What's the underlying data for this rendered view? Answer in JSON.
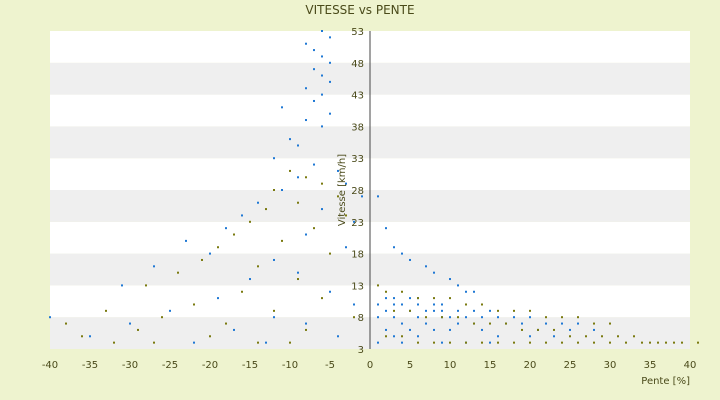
{
  "chart_data": {
    "type": "scatter",
    "title": "VITESSE vs PENTE",
    "xlabel": "Pente [%]",
    "ylabel": "Vitesse [km/h]",
    "xlim": [
      -40,
      40
    ],
    "ylim": [
      3,
      53
    ],
    "xticks": [
      "-40",
      "-35",
      "-30",
      "-25",
      "-20",
      "-15",
      "-10",
      "-5",
      "0",
      "5",
      "10",
      "15",
      "20",
      "25",
      "30",
      "35",
      "40"
    ],
    "yticks": [
      "3",
      "8",
      "13",
      "18",
      "23",
      "28",
      "33",
      "38",
      "43",
      "48",
      "53"
    ],
    "grid": "horizontal alternating bands",
    "legend": "none",
    "colors": {
      "series1": "#1f78d4",
      "series2": "#7a7a10",
      "bands_light": "#ffffff",
      "bands_dark": "#efefef",
      "background": "#eef3cf"
    },
    "series": [
      {
        "color": "#1f78d4",
        "values": [
          [
            -6,
            53
          ],
          [
            -5,
            52
          ],
          [
            -8,
            51
          ],
          [
            -7,
            50
          ],
          [
            -6,
            49
          ],
          [
            -5,
            48
          ],
          [
            -7,
            47
          ],
          [
            -6,
            46
          ],
          [
            -5,
            45
          ],
          [
            -8,
            44
          ],
          [
            -6,
            43
          ],
          [
            -7,
            42
          ],
          [
            -11,
            41
          ],
          [
            -5,
            40
          ],
          [
            -8,
            39
          ],
          [
            -6,
            38
          ],
          [
            -10,
            36
          ],
          [
            -9,
            35
          ],
          [
            -12,
            33
          ],
          [
            -7,
            32
          ],
          [
            -4,
            31
          ],
          [
            -9,
            30
          ],
          [
            -3,
            29
          ],
          [
            -11,
            28
          ],
          [
            -1,
            27
          ],
          [
            -14,
            26
          ],
          [
            -6,
            25
          ],
          [
            -16,
            24
          ],
          [
            -2,
            23
          ],
          [
            -18,
            22
          ],
          [
            -8,
            21
          ],
          [
            -23,
            20
          ],
          [
            -3,
            19
          ],
          [
            -20,
            18
          ],
          [
            -12,
            17
          ],
          [
            -27,
            16
          ],
          [
            -9,
            15
          ],
          [
            -15,
            14
          ],
          [
            -31,
            13
          ],
          [
            -5,
            12
          ],
          [
            -19,
            11
          ],
          [
            -2,
            10
          ],
          [
            -25,
            9
          ],
          [
            -40,
            8
          ],
          [
            -12,
            8
          ],
          [
            -30,
            7
          ],
          [
            -8,
            7
          ],
          [
            -17,
            6
          ],
          [
            -35,
            5
          ],
          [
            -4,
            5
          ],
          [
            -22,
            4
          ],
          [
            -13,
            4
          ],
          [
            1,
            27
          ],
          [
            2,
            22
          ],
          [
            3,
            19
          ],
          [
            4,
            18
          ],
          [
            5,
            17
          ],
          [
            7,
            16
          ],
          [
            8,
            15
          ],
          [
            10,
            14
          ],
          [
            11,
            13
          ],
          [
            12,
            12
          ],
          [
            13,
            12
          ],
          [
            2,
            11
          ],
          [
            3,
            11
          ],
          [
            5,
            11
          ],
          [
            6,
            11
          ],
          [
            8,
            10
          ],
          [
            9,
            10
          ],
          [
            1,
            10
          ],
          [
            3,
            10
          ],
          [
            4,
            10
          ],
          [
            6,
            10
          ],
          [
            7,
            9
          ],
          [
            9,
            9
          ],
          [
            11,
            9
          ],
          [
            13,
            9
          ],
          [
            15,
            9
          ],
          [
            2,
            9
          ],
          [
            5,
            9
          ],
          [
            8,
            9
          ],
          [
            10,
            8
          ],
          [
            12,
            8
          ],
          [
            14,
            8
          ],
          [
            16,
            8
          ],
          [
            18,
            8
          ],
          [
            20,
            8
          ],
          [
            22,
            7
          ],
          [
            24,
            7
          ],
          [
            26,
            7
          ],
          [
            3,
            8
          ],
          [
            6,
            8
          ],
          [
            9,
            8
          ],
          [
            1,
            8
          ],
          [
            4,
            7
          ],
          [
            7,
            7
          ],
          [
            11,
            7
          ],
          [
            13,
            7
          ],
          [
            17,
            7
          ],
          [
            19,
            7
          ],
          [
            21,
            6
          ],
          [
            25,
            6
          ],
          [
            28,
            6
          ],
          [
            2,
            6
          ],
          [
            5,
            6
          ],
          [
            8,
            6
          ],
          [
            10,
            6
          ],
          [
            14,
            6
          ],
          [
            16,
            5
          ],
          [
            20,
            5
          ],
          [
            23,
            5
          ],
          [
            3,
            5
          ],
          [
            6,
            5
          ],
          [
            9,
            4
          ],
          [
            12,
            4
          ],
          [
            15,
            4
          ],
          [
            1,
            4
          ],
          [
            4,
            4
          ]
        ]
      },
      {
        "color": "#7a7a10",
        "values": [
          [
            -10,
            31
          ],
          [
            -8,
            30
          ],
          [
            -6,
            29
          ],
          [
            -12,
            28
          ],
          [
            -4,
            27
          ],
          [
            -9,
            26
          ],
          [
            -13,
            25
          ],
          [
            -3,
            24
          ],
          [
            -15,
            23
          ],
          [
            -7,
            22
          ],
          [
            -17,
            21
          ],
          [
            -11,
            20
          ],
          [
            -19,
            19
          ],
          [
            -5,
            18
          ],
          [
            -21,
            17
          ],
          [
            -14,
            16
          ],
          [
            -24,
            15
          ],
          [
            -9,
            14
          ],
          [
            -28,
            13
          ],
          [
            -16,
            12
          ],
          [
            -6,
            11
          ],
          [
            -22,
            10
          ],
          [
            -33,
            9
          ],
          [
            -12,
            9
          ],
          [
            -26,
            8
          ],
          [
            -2,
            8
          ],
          [
            -38,
            7
          ],
          [
            -18,
            7
          ],
          [
            -29,
            6
          ],
          [
            -8,
            6
          ],
          [
            -36,
            5
          ],
          [
            -20,
            5
          ],
          [
            -14,
            4
          ],
          [
            -27,
            4
          ],
          [
            -10,
            4
          ],
          [
            -32,
            4
          ],
          [
            1,
            13
          ],
          [
            2,
            12
          ],
          [
            4,
            12
          ],
          [
            6,
            11
          ],
          [
            8,
            11
          ],
          [
            10,
            11
          ],
          [
            12,
            10
          ],
          [
            14,
            10
          ],
          [
            16,
            9
          ],
          [
            18,
            9
          ],
          [
            20,
            9
          ],
          [
            22,
            8
          ],
          [
            24,
            8
          ],
          [
            26,
            8
          ],
          [
            28,
            7
          ],
          [
            30,
            7
          ],
          [
            3,
            9
          ],
          [
            5,
            9
          ],
          [
            7,
            8
          ],
          [
            9,
            8
          ],
          [
            11,
            8
          ],
          [
            13,
            7
          ],
          [
            15,
            7
          ],
          [
            17,
            7
          ],
          [
            19,
            6
          ],
          [
            21,
            6
          ],
          [
            23,
            6
          ],
          [
            25,
            5
          ],
          [
            27,
            5
          ],
          [
            29,
            5
          ],
          [
            31,
            5
          ],
          [
            33,
            5
          ],
          [
            35,
            4
          ],
          [
            37,
            4
          ],
          [
            39,
            4
          ],
          [
            41,
            4
          ],
          [
            2,
            5
          ],
          [
            4,
            5
          ],
          [
            6,
            4
          ],
          [
            8,
            4
          ],
          [
            10,
            4
          ],
          [
            12,
            4
          ],
          [
            14,
            4
          ],
          [
            16,
            4
          ],
          [
            18,
            4
          ],
          [
            20,
            4
          ],
          [
            22,
            4
          ],
          [
            24,
            4
          ],
          [
            26,
            4
          ],
          [
            28,
            4
          ],
          [
            30,
            4
          ],
          [
            32,
            4
          ],
          [
            34,
            4
          ],
          [
            36,
            4
          ],
          [
            38,
            4
          ]
        ]
      }
    ]
  }
}
